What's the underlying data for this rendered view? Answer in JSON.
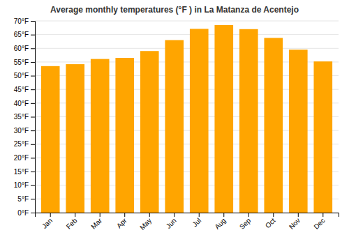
{
  "chart_data": {
    "type": "bar",
    "title": "Average monthly temperatures (°F ) in La Matanza de Acentejo",
    "categories": [
      "Jan",
      "Feb",
      "Mar",
      "Apr",
      "May",
      "Jun",
      "Jul",
      "Aug",
      "Sep",
      "Oct",
      "Nov",
      "Dec"
    ],
    "values": [
      53.5,
      54.2,
      56.1,
      56.5,
      59.0,
      63.0,
      67.1,
      68.5,
      67.0,
      63.8,
      59.5,
      55.2
    ],
    "color": "#FFA500",
    "ylim": [
      0,
      70
    ],
    "yticks": [
      {
        "value": 0,
        "label": "0°F"
      },
      {
        "value": 5,
        "label": "5°F"
      },
      {
        "value": 10,
        "label": "10°F"
      },
      {
        "value": 15,
        "label": "15°F"
      },
      {
        "value": 20,
        "label": "20°F"
      },
      {
        "value": 25,
        "label": "25°F"
      },
      {
        "value": 30,
        "label": "30°F"
      },
      {
        "value": 35,
        "label": "35°F"
      },
      {
        "value": 40,
        "label": "40°F"
      },
      {
        "value": 45,
        "label": "45°F"
      },
      {
        "value": 50,
        "label": "50°F"
      },
      {
        "value": 55,
        "label": "55°F"
      },
      {
        "value": 60,
        "label": "60°F"
      },
      {
        "value": 65,
        "label": "65°F"
      },
      {
        "value": 70,
        "label": "70°F"
      }
    ],
    "grid": true
  }
}
